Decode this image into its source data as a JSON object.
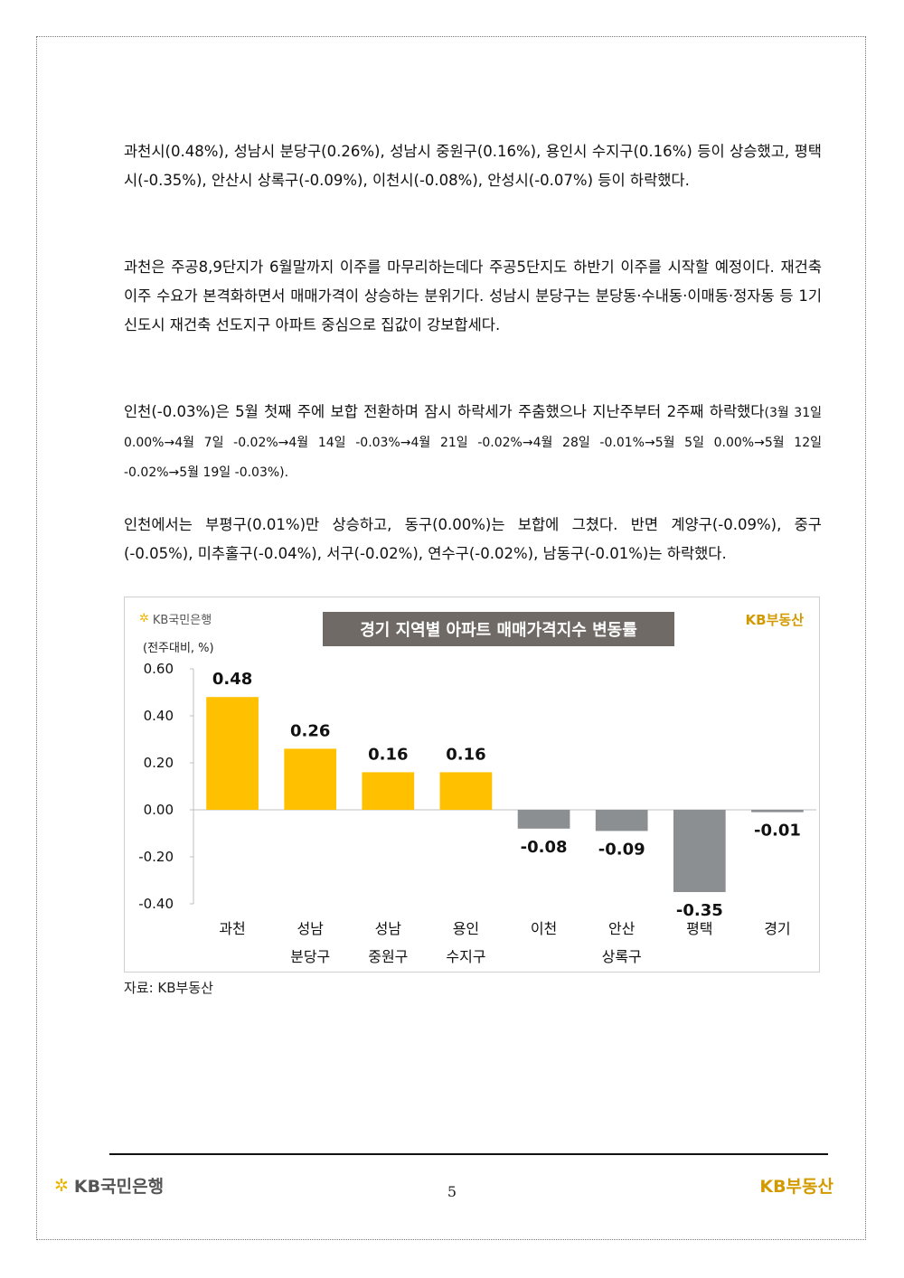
{
  "paragraphs": {
    "p1": "과천시(0.48%), 성남시 분당구(0.26%), 성남시 중원구(0.16%), 용인시 수지구(0.16%) 등이 상승했고, 평택시(-0.35%), 안산시 상록구(-0.09%), 이천시(-0.08%), 안성시(-0.07%) 등이 하락했다.",
    "p2": "과천은 주공8,9단지가 6월말까지 이주를 마무리하는데다 주공5단지도 하반기 이주를 시작할 예정이다. 재건축 이주 수요가 본격화하면서 매매가격이 상승하는 분위기다. 성남시 분당구는 분당동·수내동·이매동·정자동 등 1기 신도시 재건축 선도지구 아파트 중심으로 집값이 강보합세다.",
    "p3_main": "인천(-0.03%)은 5월 첫째 주에 보합 전환하며 잠시 하락세가 주춤했으나 지난주부터 2주째 하락했다",
    "p3_small": "(3월 31일 0.00%→4월 7일 -0.02%→4월 14일 -0.03%→4월 21일 -0.02%→4월 28일 -0.01%→5월 5일 0.00%→5월 12일 -0.02%→5월 19일 -0.03%).",
    "p4": "인천에서는 부평구(0.01%)만 상승하고, 동구(0.00%)는 보합에 그쳤다. 반면 계양구(-0.09%), 중구(-0.05%), 미추홀구(-0.04%), 서구(-0.02%), 연수구(-0.02%), 남동구(-0.01%)는 하락했다."
  },
  "chart_header": {
    "logo_text": "KB국민은행",
    "title": "경기 지역별 아파트 매매가격지수 변동률",
    "brand": "KB부동산",
    "unit": "(전주대비, %)"
  },
  "chart_data": {
    "type": "bar",
    "title": "경기 지역별 아파트 매매가격지수 변동률",
    "ylabel": "(전주대비, %)",
    "ylim": [
      -0.4,
      0.6
    ],
    "yticks": [
      "0.60",
      "0.40",
      "0.20",
      "0.00",
      "-0.20",
      "-0.40"
    ],
    "categories": [
      [
        "과천"
      ],
      [
        "성남",
        "분당구"
      ],
      [
        "성남",
        "중원구"
      ],
      [
        "용인",
        "수지구"
      ],
      [
        "이천"
      ],
      [
        "안산",
        "상록구"
      ],
      [
        "평택"
      ],
      [
        "경기"
      ]
    ],
    "values": [
      0.48,
      0.26,
      0.16,
      0.16,
      -0.08,
      -0.09,
      -0.35,
      -0.01
    ],
    "value_labels": [
      "0.48",
      "0.26",
      "0.16",
      "0.16",
      "-0.08",
      "-0.09",
      "-0.35",
      "-0.01"
    ],
    "colors": {
      "positive": "#ffc000",
      "negative": "#8c8f92",
      "axis": "#bfbfbf"
    },
    "grid": false
  },
  "source_text": "자료: KB부동산",
  "footer": {
    "left_logo": "KB국민은행",
    "page_number": "5",
    "right_logo": "KB부동산"
  }
}
